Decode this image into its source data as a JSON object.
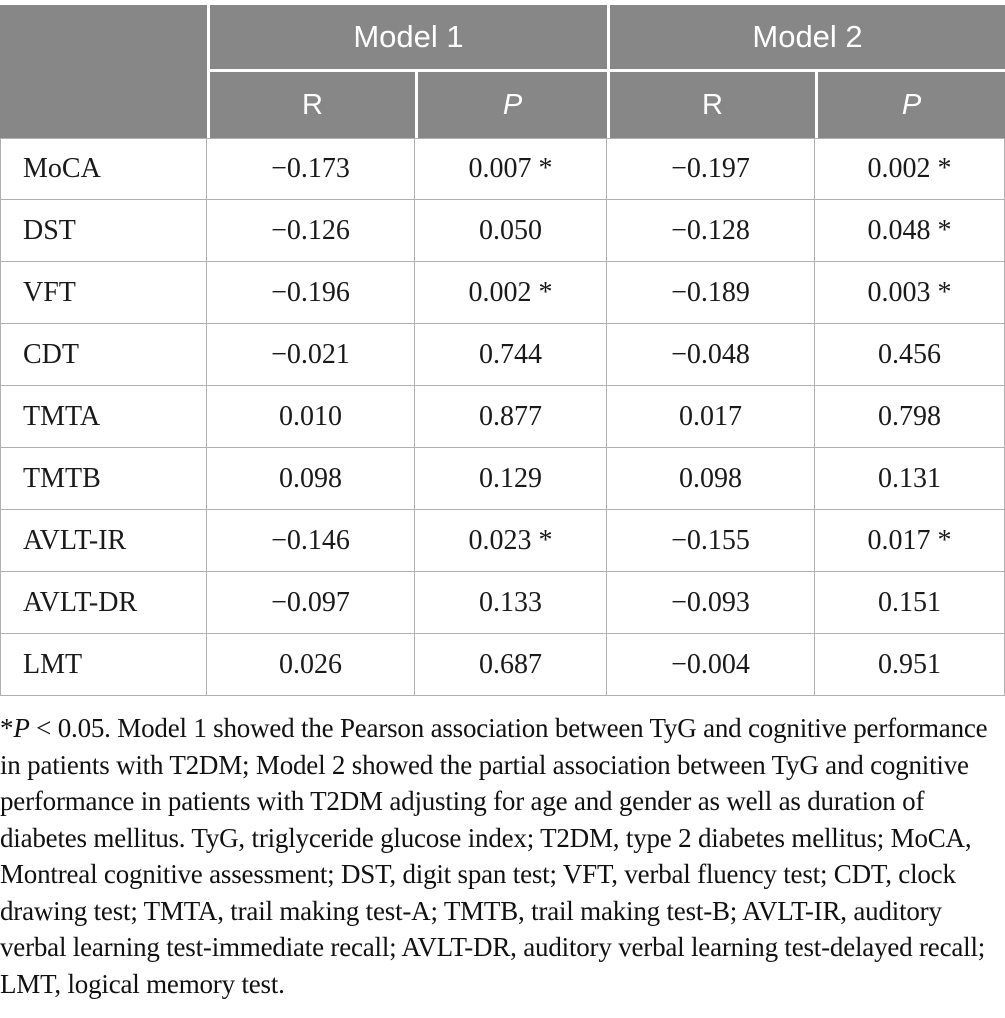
{
  "table": {
    "header": {
      "model1": "Model 1",
      "model2": "Model 2",
      "r_label": "R",
      "p_label": "P"
    },
    "rows": [
      {
        "label": "MoCA",
        "m1_r": "−0.173",
        "m1_p": "0.007 *",
        "m2_r": "−0.197",
        "m2_p": "0.002 *"
      },
      {
        "label": "DST",
        "m1_r": "−0.126",
        "m1_p": "0.050",
        "m2_r": "−0.128",
        "m2_p": "0.048 *"
      },
      {
        "label": "VFT",
        "m1_r": "−0.196",
        "m1_p": "0.002 *",
        "m2_r": "−0.189",
        "m2_p": "0.003 *"
      },
      {
        "label": "CDT",
        "m1_r": "−0.021",
        "m1_p": "0.744",
        "m2_r": "−0.048",
        "m2_p": "0.456"
      },
      {
        "label": "TMTA",
        "m1_r": "0.010",
        "m1_p": "0.877",
        "m2_r": "0.017",
        "m2_p": "0.798"
      },
      {
        "label": "TMTB",
        "m1_r": "0.098",
        "m1_p": "0.129",
        "m2_r": "0.098",
        "m2_p": "0.131"
      },
      {
        "label": "AVLT-IR",
        "m1_r": "−0.146",
        "m1_p": "0.023 *",
        "m2_r": "−0.155",
        "m2_p": "0.017 *"
      },
      {
        "label": "AVLT-DR",
        "m1_r": "−0.097",
        "m1_p": "0.133",
        "m2_r": "−0.093",
        "m2_p": "0.151"
      },
      {
        "label": "LMT",
        "m1_r": "0.026",
        "m1_p": "0.687",
        "m2_r": "−0.004",
        "m2_p": "0.951"
      }
    ]
  },
  "footnote": {
    "marker": "*",
    "p_italic": "P",
    "first_line_rest": " < 0.05. Model 1 showed the Pearson association between TyG and cognitive performance",
    "lines": [
      "in patients with T2DM; Model 2 showed the partial association between TyG and cognitive",
      "performance in patients with T2DM adjusting for age and gender as well as duration of",
      "diabetes mellitus. TyG, triglyceride glucose index; T2DM, type 2 diabetes mellitus; MoCA,",
      "Montreal cognitive assessment; DST, digit span test; VFT, verbal fluency test; CDT, clock",
      "drawing test; TMTA, trail making test-A; TMTB, trail making test-B; AVLT-IR, auditory",
      "verbal learning test-immediate recall; AVLT-DR, auditory verbal learning test-delayed recall;",
      "LMT, logical memory test."
    ]
  },
  "colors": {
    "header_bg": "#878787",
    "header_text": "#ffffff",
    "body_text": "#1a1a1a",
    "border": "#b0b0b0"
  }
}
